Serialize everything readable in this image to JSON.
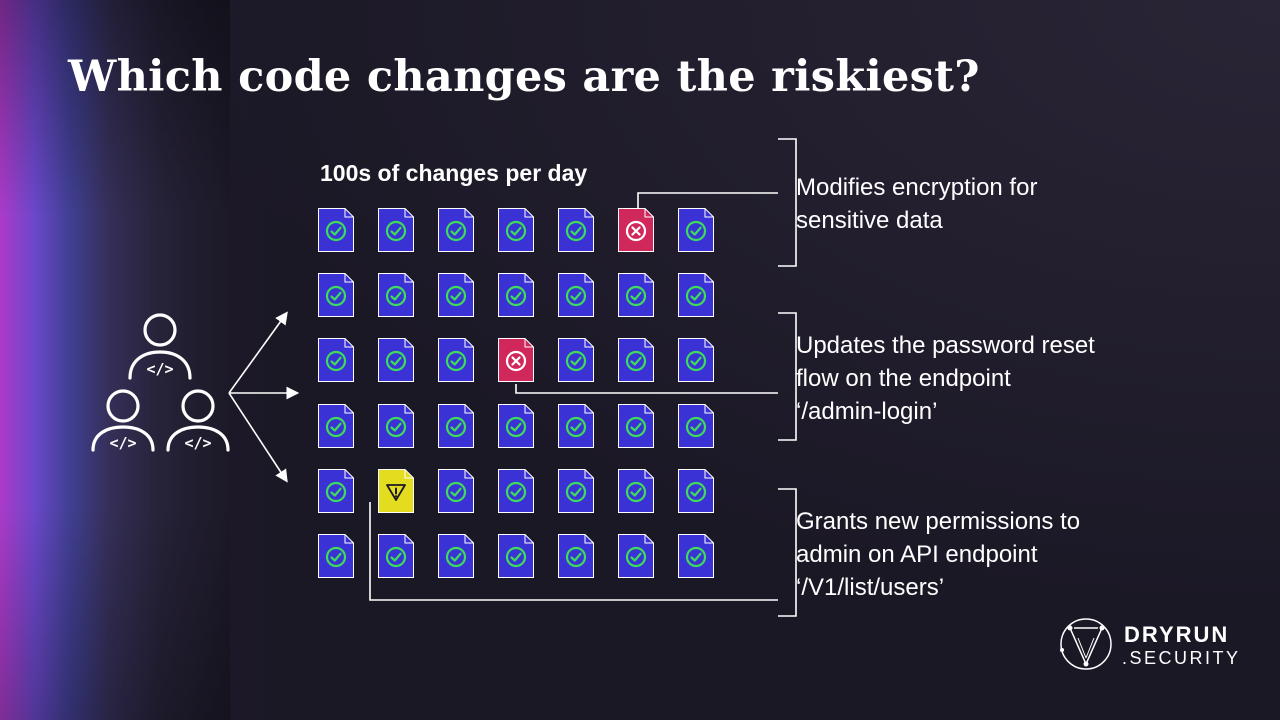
{
  "slide": {
    "title": "Which code changes are the riskiest?",
    "subtitle": "100s of changes per day"
  },
  "icons": {
    "developer": "developer-code-icon",
    "ok": "check-circle-icon",
    "risk": "x-circle-icon",
    "warning": "warning-triangle-icon"
  },
  "colors": {
    "file_ok": "#3b32d6",
    "check": "#3ddc5a",
    "file_risk": "#d1285c",
    "file_warning": "#e3dc1f",
    "connector": "#ffffff"
  },
  "files": {
    "rows": 6,
    "columns": 7,
    "flagged": [
      {
        "row": 1,
        "col": 6,
        "status": "risk"
      },
      {
        "row": 3,
        "col": 4,
        "status": "risk"
      },
      {
        "row": 5,
        "col": 2,
        "status": "warning"
      }
    ]
  },
  "annotations": [
    {
      "lines": [
        "Modifies encryption for",
        "sensitive data"
      ]
    },
    {
      "lines": [
        "Updates the password reset",
        "flow on the endpoint",
        "‘/admin-login’"
      ]
    },
    {
      "lines": [
        "Grants new permissions to",
        "admin on API endpoint",
        "‘/V1/list/users’"
      ]
    }
  ],
  "logo": {
    "line1": "DRYRUN",
    "line2": ".SECURITY"
  }
}
